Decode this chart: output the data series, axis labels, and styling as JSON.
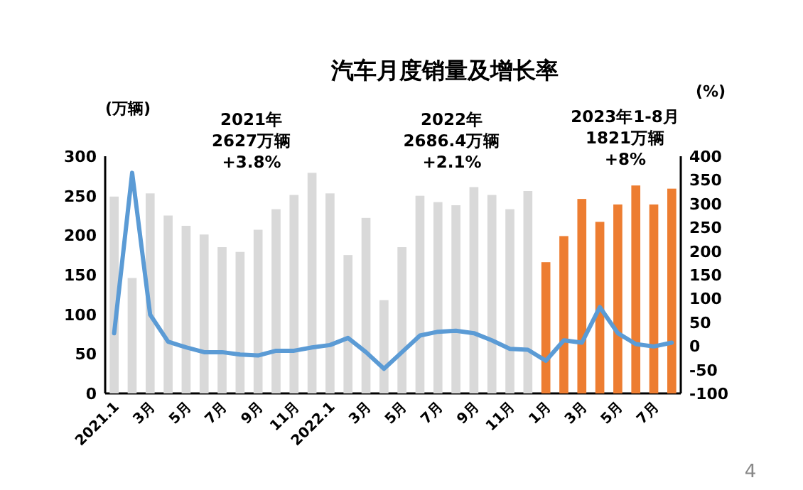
{
  "chart_data": {
    "type": "bar",
    "title": "汽车月度销量及增长率",
    "ylabel": "(万辆)",
    "y2label": "(%)",
    "categories": [
      "2021.1",
      null,
      "3月",
      null,
      "5月",
      null,
      "7月",
      null,
      "9月",
      null,
      "11月",
      null,
      "2022.1",
      null,
      "3月",
      null,
      "5月",
      null,
      "7月",
      null,
      "9月",
      null,
      "11月",
      null,
      "1月",
      null,
      "3月",
      null,
      "5月",
      null,
      "7月",
      null
    ],
    "series": [
      {
        "colors": [
          "#d9d9d9",
          "#d9d9d9",
          "#d9d9d9",
          "#d9d9d9",
          "#d9d9d9",
          "#d9d9d9",
          "#d9d9d9",
          "#d9d9d9",
          "#d9d9d9",
          "#d9d9d9",
          "#d9d9d9",
          "#d9d9d9",
          "#d9d9d9",
          "#d9d9d9",
          "#d9d9d9",
          "#d9d9d9",
          "#d9d9d9",
          "#d9d9d9",
          "#d9d9d9",
          "#d9d9d9",
          "#d9d9d9",
          "#d9d9d9",
          "#d9d9d9",
          "#d9d9d9",
          "#ed7d31",
          "#ed7d31",
          "#ed7d31",
          "#ed7d31",
          "#ed7d31",
          "#ed7d31",
          "#ed7d31",
          "#ed7d31"
        ],
        "values": [
          249,
          146,
          253,
          225,
          212,
          201,
          185,
          179,
          207,
          233,
          251,
          279,
          253,
          175,
          222,
          118,
          185,
          250,
          242,
          238,
          261,
          251,
          233,
          256,
          166,
          199,
          246,
          217,
          239,
          263,
          239,
          259
        ]
      },
      {
        "type": "line",
        "axis": "y2",
        "color": "#5b9bd5",
        "values": [
          27,
          365,
          66,
          9,
          -3,
          -13,
          -13,
          -18,
          -20,
          -10,
          -10,
          -3,
          2,
          17,
          -13,
          -48,
          -13,
          22,
          30,
          32,
          27,
          12,
          -6,
          -8,
          -31,
          12,
          7,
          82,
          27,
          4,
          -1,
          7
        ]
      }
    ],
    "ylim": [
      0,
      300
    ],
    "yticks": [
      0,
      50,
      100,
      150,
      200,
      250,
      300
    ],
    "y2lim": [
      -100,
      400
    ],
    "y2ticks": [
      -100,
      -50,
      0,
      50,
      100,
      150,
      200,
      250,
      300,
      350,
      400
    ],
    "annotations": [
      "2021年\n2627万辆\n+3.8%",
      "2022年\n2686.4万辆\n+2.1%",
      "2023年1-8月\n1821万辆\n+8%",
      "4"
    ],
    "grid": false,
    "marker": "none",
    "line_style": "solid"
  }
}
